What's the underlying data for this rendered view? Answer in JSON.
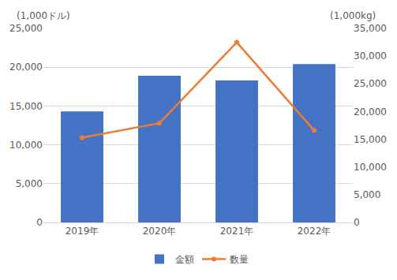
{
  "chart_data": {
    "type": "bar",
    "categories": [
      "2019年",
      "2020年",
      "2021年",
      "2022年"
    ],
    "ylabel": "(1,000ドル)",
    "y2label": "(1,000kg)",
    "series": [
      {
        "name": "金額",
        "type": "bar",
        "color": "#4472c4",
        "values": [
          14300,
          18900,
          18300,
          20400
        ]
      },
      {
        "name": "数量",
        "type": "line",
        "axis": "y2",
        "color": "#ed7d31",
        "marker": "circle",
        "values": [
          15300,
          17900,
          32500,
          16600
        ]
      }
    ],
    "ylim": [
      0,
      25000
    ],
    "yticks": [
      0,
      {
        "value": 5000,
        "label": "5,000"
      },
      {
        "value": 10000,
        "label": "10,000"
      },
      {
        "value": 15000,
        "label": "15,000"
      },
      {
        "value": 20000,
        "label": "20,000"
      },
      {
        "value": 25000,
        "label": "25,000"
      }
    ],
    "y2lim": [
      0,
      35000
    ],
    "y2ticks": [
      0,
      {
        "value": 5000,
        "label": "5,000"
      },
      {
        "value": 10000,
        "label": "10,000"
      },
      {
        "value": 15000,
        "label": "15,000"
      },
      {
        "value": 20000,
        "label": "20,000"
      },
      {
        "value": 25000,
        "label": "25,000"
      },
      {
        "value": 30000,
        "label": "30,000"
      },
      {
        "value": 35000,
        "label": "35,000"
      }
    ],
    "grid": true,
    "legend": "bottom"
  }
}
